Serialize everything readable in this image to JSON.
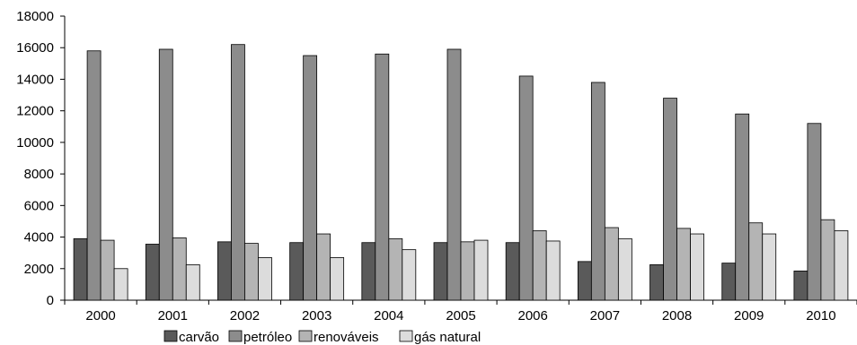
{
  "chart_data": {
    "type": "bar",
    "categories": [
      "2000",
      "2001",
      "2002",
      "2003",
      "2004",
      "2005",
      "2006",
      "2007",
      "2008",
      "2009",
      "2010"
    ],
    "series": [
      {
        "name": "carvão",
        "color": "#5a5a5a",
        "values": [
          3900,
          3550,
          3700,
          3650,
          3650,
          3650,
          3650,
          2450,
          2250,
          2350,
          1850
        ]
      },
      {
        "name": "petróleo",
        "color": "#8c8c8c",
        "values": [
          15800,
          15900,
          16200,
          15500,
          15600,
          15900,
          14200,
          13800,
          12800,
          11800,
          11200
        ]
      },
      {
        "name": "renováveis",
        "color": "#b4b4b4",
        "values": [
          3800,
          3950,
          3600,
          4200,
          3900,
          3700,
          4400,
          4600,
          4550,
          4900,
          5100
        ]
      },
      {
        "name": "gás natural",
        "color": "#dcdcdc",
        "values": [
          2000,
          2250,
          2700,
          2700,
          3200,
          3800,
          3750,
          3900,
          4200,
          4200,
          4400
        ]
      }
    ],
    "yticks": [
      "0",
      "2000",
      "4000",
      "6000",
      "8000",
      "10000",
      "12000",
      "14000",
      "16000",
      "18000"
    ],
    "ylim": [
      0,
      18000
    ],
    "legend_position": "bottom",
    "grid": false
  }
}
